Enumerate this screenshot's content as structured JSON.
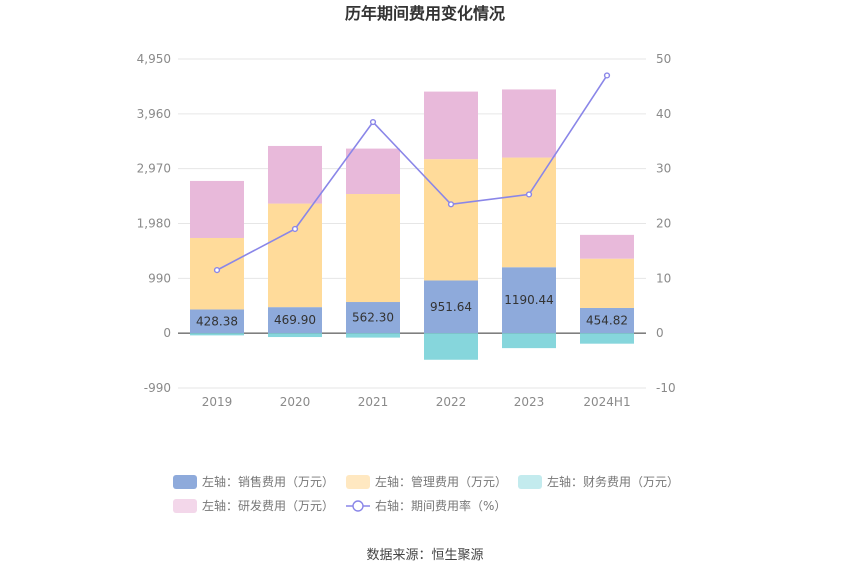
{
  "chart_data": {
    "type": "bar",
    "title": "历年期间费用变化情况",
    "categories": [
      "2019",
      "2020",
      "2021",
      "2022",
      "2023",
      "2024H1"
    ],
    "left_axis": {
      "min": -990,
      "max": 4950,
      "ticks": [
        "4,950",
        "3,960",
        "2,970",
        "1,980",
        "990",
        "0",
        "-990"
      ],
      "tick_values": [
        4950,
        3960,
        2970,
        1980,
        990,
        0,
        -990
      ]
    },
    "right_axis": {
      "min": -10,
      "max": 50,
      "ticks": [
        "50",
        "40",
        "30",
        "20",
        "10",
        "0",
        "-10"
      ],
      "tick_values": [
        50,
        40,
        30,
        20,
        10,
        0,
        -10
      ]
    },
    "series": [
      {
        "name": "左轴：销售费用（万元）",
        "kind": "bar",
        "color": "#8eaadb",
        "values": [
          428.38,
          469.9,
          562.3,
          951.64,
          1190.44,
          454.82
        ],
        "labels": [
          "428.38",
          "469.90",
          "562.30",
          "951.64",
          "1190.44",
          "454.82"
        ]
      },
      {
        "name": "左轴：管理费用（万元）",
        "kind": "bar",
        "color": "#ffdb9a",
        "values": [
          1290,
          1870,
          1950,
          2190,
          1980,
          890
        ]
      },
      {
        "name": "左轴：财务费用（万元）",
        "kind": "bar",
        "color": "#86d6dc",
        "values": [
          -40,
          -70,
          -80,
          -480,
          -270,
          -190
        ]
      },
      {
        "name": "左轴：研发费用（万元）",
        "kind": "bar",
        "color": "#e8b9da",
        "values": [
          1030,
          1040,
          820,
          1220,
          1230,
          430
        ]
      },
      {
        "name": "右轴：期间费用率（%）",
        "kind": "line",
        "color": "#8a86e8",
        "values": [
          11.5,
          19.0,
          38.5,
          23.5,
          25.3,
          47.0
        ]
      }
    ],
    "grid": true,
    "legend_position": "bottom"
  },
  "source": "数据来源：恒生聚源"
}
